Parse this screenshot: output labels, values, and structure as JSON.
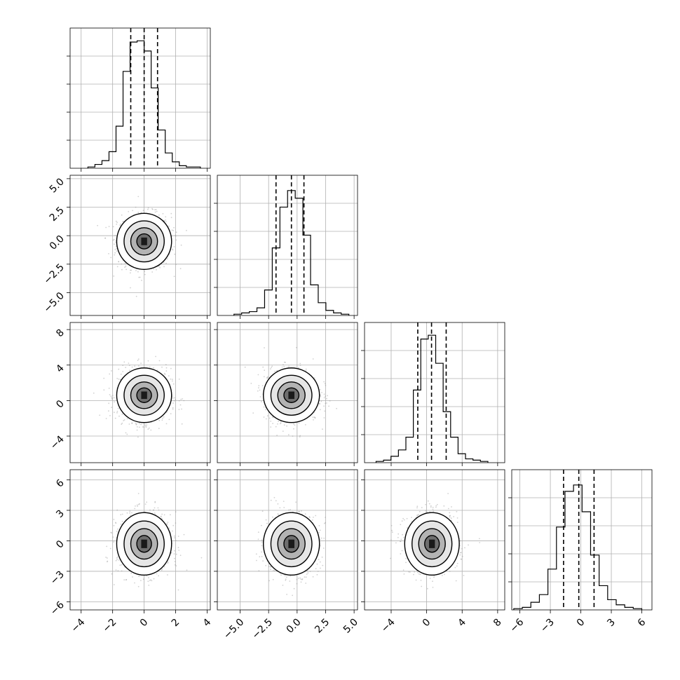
{
  "chart_data": {
    "type": "corner",
    "title": "",
    "parameters": [
      {
        "xlim": [
          -4.7,
          4.2
        ],
        "ticks": [
          -4,
          -2,
          0,
          2,
          4
        ],
        "tick_labels": [
          "−4",
          "−2",
          "0",
          "2",
          "4"
        ],
        "quantiles": [
          -0.85,
          0.0,
          0.85
        ],
        "mean": 0.0,
        "sd": 0.85
      },
      {
        "xlim": [
          -7.0,
          5.3
        ],
        "ticks": [
          -5,
          -2.5,
          0,
          2.5,
          5
        ],
        "tick_labels": [
          "−5.0",
          "−2.5",
          "0.0",
          "2.5",
          "5.0"
        ],
        "quantiles": [
          -1.85,
          -0.5,
          0.6
        ],
        "mean": -0.5,
        "sd": 1.2
      },
      {
        "xlim": [
          -7.0,
          8.8
        ],
        "ticks": [
          -4,
          0,
          4,
          8
        ],
        "tick_labels": [
          "−4",
          "0",
          "4",
          "8"
        ],
        "quantiles": [
          -1.0,
          0.55,
          2.2
        ],
        "mean": 0.6,
        "sd": 1.5
      },
      {
        "xlim": [
          -6.8,
          7.0
        ],
        "ticks": [
          -6,
          -3,
          0,
          3,
          6
        ],
        "tick_labels": [
          "−6",
          "−3",
          "0",
          "3",
          "6"
        ],
        "quantiles": [
          -1.7,
          -0.2,
          1.3
        ],
        "mean": -0.3,
        "sd": 1.5
      }
    ],
    "histograms": [
      [
        0.01,
        0.03,
        0.06,
        0.13,
        0.33,
        0.76,
        0.99,
        1.0,
        0.92,
        0.63,
        0.3,
        0.12,
        0.05,
        0.02,
        0.01,
        0.01
      ],
      [
        0.01,
        0.02,
        0.03,
        0.06,
        0.2,
        0.53,
        0.85,
        0.98,
        0.92,
        0.63,
        0.24,
        0.1,
        0.04,
        0.02,
        0.01
      ],
      [
        0.01,
        0.02,
        0.05,
        0.1,
        0.2,
        0.57,
        0.97,
        1.0,
        0.78,
        0.4,
        0.2,
        0.07,
        0.03,
        0.02,
        0.01
      ],
      [
        0.01,
        0.02,
        0.06,
        0.12,
        0.32,
        0.65,
        0.93,
        0.98,
        0.77,
        0.43,
        0.19,
        0.08,
        0.04,
        0.02,
        0.01
      ]
    ],
    "contour_levels": [
      "0.5σ",
      "1σ",
      "1.5σ",
      "2σ"
    ],
    "grid": true,
    "colors": {
      "line": "#000000",
      "scatter": "#9a9a9a",
      "grid": "#b0b0b0"
    }
  }
}
